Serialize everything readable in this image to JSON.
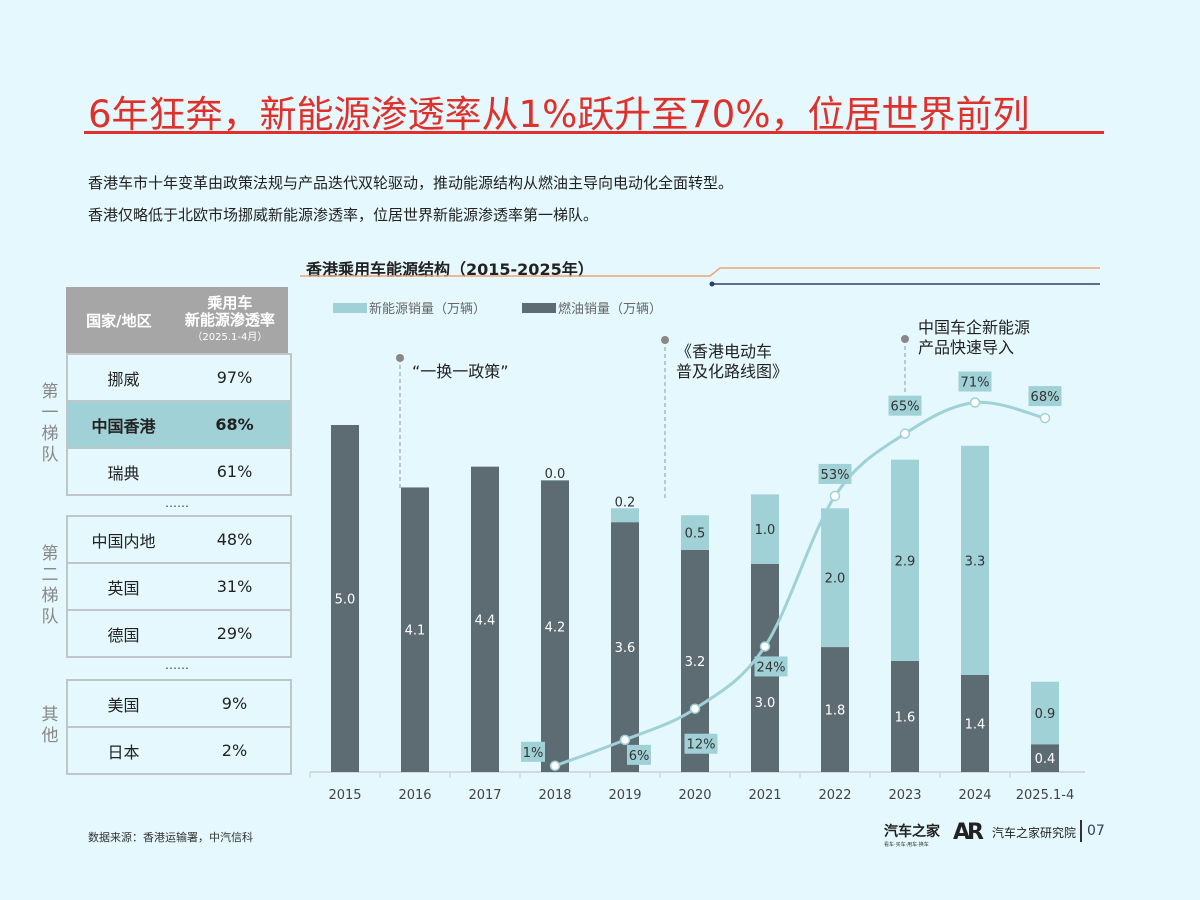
{
  "title": "6年狂奔，新能源渗透率从1%跃升至70%，位居世界前列",
  "subtitle_lines": [
    "香港车市十年变革由政策法规与产品迭代双轮驱动，推动能源结构从燃油主导向电动化全面转型。",
    "香港仅略低于北欧市场挪威新能源渗透率，位居世界新能源渗透率第一梯队。"
  ],
  "table": {
    "header": {
      "col1": "国家/地区",
      "col2a": "乘用车",
      "col2b": "新能源渗透率",
      "col2c": "（2025.1-4月）"
    },
    "tiers": [
      {
        "label": "第一梯队",
        "rows": [
          {
            "name": "挪威",
            "value": "97%"
          },
          {
            "name": "中国香港",
            "value": "68%",
            "highlight": true
          },
          {
            "name": "瑞典",
            "value": "61%"
          }
        ]
      },
      {
        "label": "第二梯队",
        "rows": [
          {
            "name": "中国内地",
            "value": "48%"
          },
          {
            "name": "英国",
            "value": "31%"
          },
          {
            "name": "德国",
            "value": "29%"
          }
        ]
      },
      {
        "label": "其他",
        "rows": [
          {
            "name": "美国",
            "value": "9%"
          },
          {
            "name": "日本",
            "value": "2%"
          }
        ]
      }
    ],
    "ellipsis": "……"
  },
  "chart_data": {
    "type": "bar",
    "stacked": true,
    "title": "香港乘用车能源结构（2015-2025年）",
    "categories": [
      "2015",
      "2016",
      "2017",
      "2018",
      "2019",
      "2020",
      "2021",
      "2022",
      "2023",
      "2024",
      "2025.1-4"
    ],
    "series": [
      {
        "name": "燃油销量（万辆）",
        "color": "#5d6b73",
        "values": [
          5.0,
          4.1,
          4.4,
          4.2,
          3.6,
          3.2,
          3.0,
          1.8,
          1.6,
          1.4,
          0.4
        ]
      },
      {
        "name": "新能源销量（万辆）",
        "color": "#9fd1d6",
        "values": [
          null,
          null,
          null,
          0.0,
          0.2,
          0.5,
          1.0,
          2.0,
          2.9,
          3.3,
          0.9
        ]
      }
    ],
    "line": {
      "name": "新能源渗透率",
      "color": "#9fd1d6",
      "values": [
        null,
        null,
        null,
        1,
        6,
        12,
        24,
        53,
        65,
        71,
        68
      ],
      "labels": [
        "",
        "",
        "",
        "1%",
        "6%",
        "12%",
        "24%",
        "53%",
        "65%",
        "71%",
        "68%"
      ]
    },
    "annotations": [
      {
        "text": "“一换一政策”",
        "category": "2016"
      },
      {
        "text": "《香港电动车普及化路线图》",
        "lines": [
          "《香港电动车",
          "普及化路线图》"
        ],
        "category": "2020"
      },
      {
        "text": "中国车企新能源产品快速导入",
        "lines": [
          "中国车企新能源",
          "产品快速导入"
        ],
        "category": "2023"
      }
    ],
    "legend_position": "top-left",
    "grid": false
  },
  "source": "数据来源：香港运输署，中汽信科",
  "footer": {
    "logo1": "汽车之家",
    "logo1_sub": "看车·买车·用车·换车",
    "logo2": "汽车之家研究院",
    "page": "07"
  }
}
